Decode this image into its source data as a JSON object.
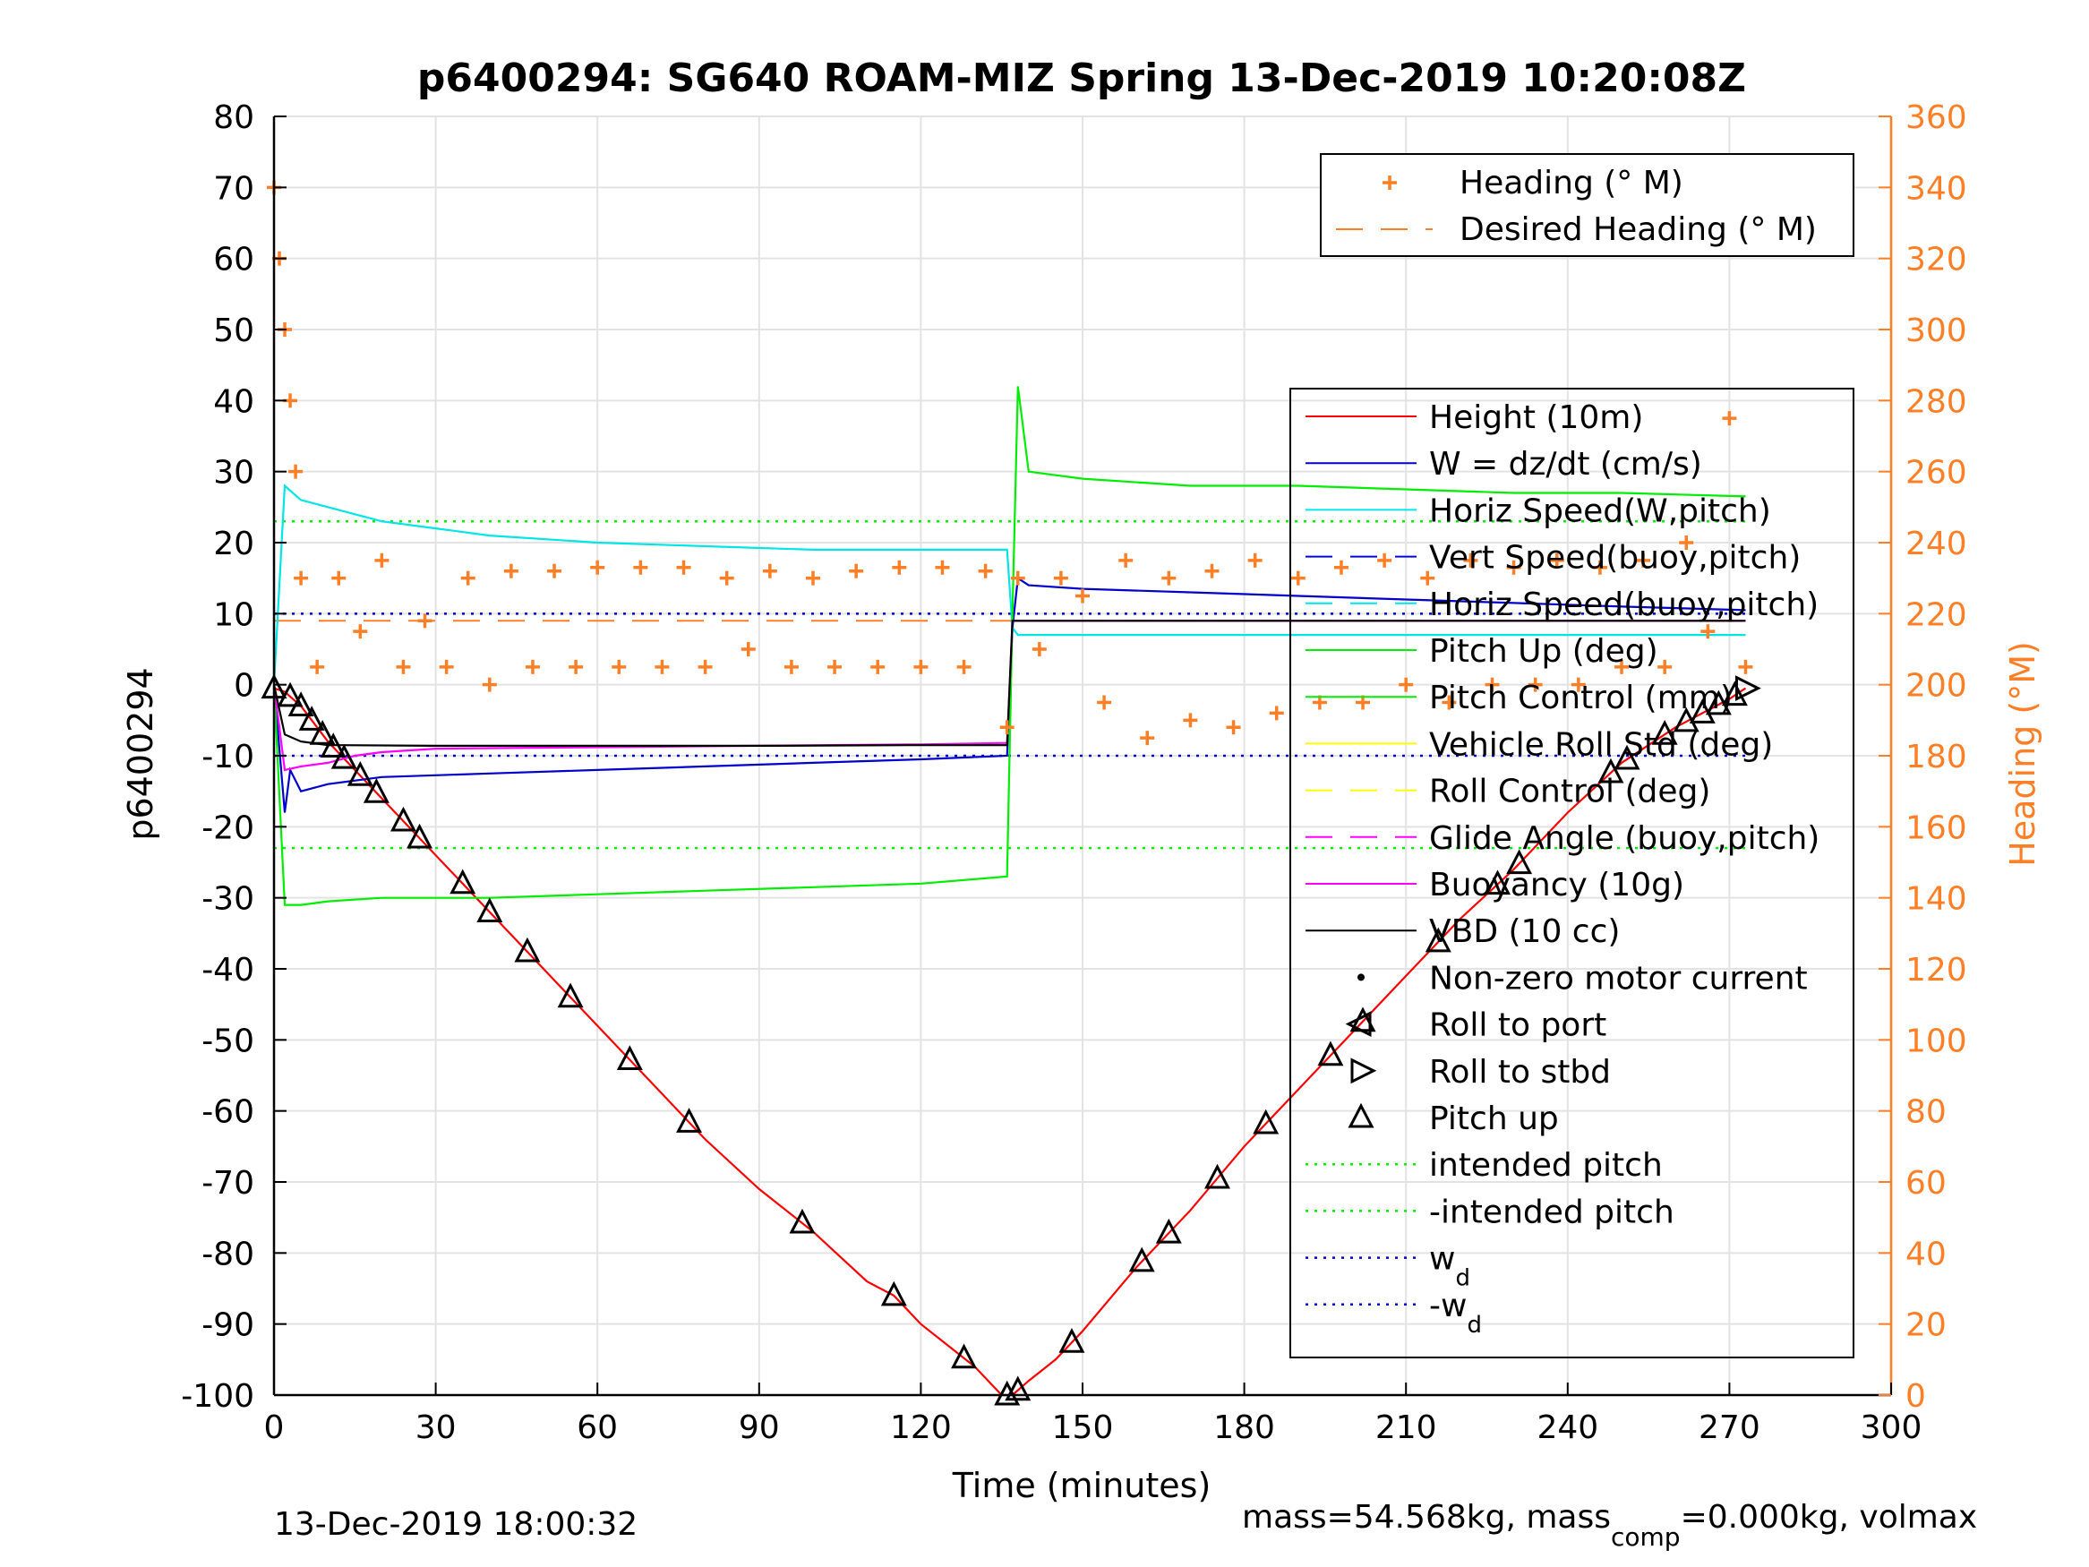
{
  "figure": {
    "title": "p6400294: SG640 ROAM-MIZ Spring 13-Dec-2019 10:20:08Z",
    "footer_left": "13-Dec-2019 18:00:32",
    "footer_right_prefix": "mass=54.568kg, mass",
    "footer_right_sub": "comp",
    "footer_right_suffix": "=0.000kg, volmax"
  },
  "chart_data": {
    "type": "line",
    "title": "p6400294: SG640 ROAM-MIZ Spring 13-Dec-2019 10:20:08Z",
    "xlabel": "Time (minutes)",
    "ylabel": "p6400294",
    "y2label": "Heading (°M)",
    "xlim": [
      0,
      300
    ],
    "ylim": [
      -100,
      80
    ],
    "y2lim": [
      0,
      360
    ],
    "xticks": [
      "0",
      "30",
      "60",
      "90",
      "120",
      "150",
      "180",
      "210",
      "240",
      "270",
      "300"
    ],
    "yticks": [
      "80",
      "70",
      "60",
      "50",
      "40",
      "30",
      "20",
      "10",
      "0",
      "-10",
      "-20",
      "-30",
      "-40",
      "-50",
      "-60",
      "-70",
      "-80",
      "-90",
      "-100"
    ],
    "y2ticks": [
      "360",
      "340",
      "320",
      "300",
      "280",
      "260",
      "240",
      "220",
      "200",
      "180",
      "160",
      "140",
      "120",
      "100",
      "80",
      "60",
      "40",
      "20",
      "0"
    ],
    "grid": true,
    "colors": {
      "height": "#ff0000",
      "w": "#0000cc",
      "horiz": "#00e5e5",
      "vert_buoy": "#0000ff",
      "pitch": "#00ee00",
      "roll": "#ffff00",
      "buoyancy": "#ff00ff",
      "vbd": "#000000",
      "heading": "#ff7f27",
      "marker": "#000000"
    },
    "legend_heading": {
      "placement": "top-right",
      "entries": [
        "Heading (° M)",
        "Desired Heading (° M)"
      ]
    },
    "legend_main": {
      "placement": "right",
      "entries": [
        "Height (10m)",
        "W = dz/dt (cm/s)",
        "Horiz Speed(W,pitch)",
        "Vert Speed(buoy,pitch)",
        "Horiz Speed(buoy,pitch)",
        "Pitch Up (deg)",
        "Pitch Control (mm)",
        "Vehicle Roll Std (deg)",
        "Roll Control (deg)",
        "Glide Angle (buoy,pitch)",
        "Buoyancy (10g)",
        "VBD (10 cc)",
        "Non-zero motor current",
        "Roll to port",
        "Roll to stbd",
        "Pitch up",
        "intended pitch",
        "-intended pitch",
        "w",
        "-w"
      ],
      "subscript": "d"
    },
    "constants": {
      "intended_pitch": 23,
      "neg_intended_pitch": -23,
      "w_d": 10,
      "neg_w_d": -10,
      "desired_heading": 218
    },
    "series": [
      {
        "name": "Height (10m)",
        "x": [
          0,
          2,
          5,
          10,
          15,
          20,
          30,
          40,
          50,
          60,
          70,
          80,
          90,
          100,
          110,
          115,
          120,
          125,
          130,
          135,
          137,
          140,
          145,
          150,
          160,
          170,
          180,
          190,
          200,
          210,
          220,
          230,
          240,
          250,
          260,
          270,
          273
        ],
        "y": [
          -0.5,
          -1,
          -3,
          -8,
          -12,
          -16,
          -24,
          -32,
          -40,
          -48,
          -56,
          -64,
          -71,
          -77,
          -84,
          -86,
          -90,
          -93,
          -96,
          -100,
          -100,
          -98,
          -95,
          -91,
          -82,
          -74,
          -65,
          -57,
          -49,
          -41,
          -33,
          -26,
          -18,
          -11,
          -6,
          -2,
          -0.5
        ]
      },
      {
        "name": "W = dz/dt (cm/s)",
        "x": [
          0,
          2,
          3,
          5,
          10,
          20,
          40,
          60,
          80,
          100,
          120,
          136,
          137,
          138,
          140,
          150,
          170,
          190,
          210,
          230,
          250,
          273
        ],
        "y": [
          0,
          -18,
          -12,
          -15,
          -14,
          -13,
          -12.5,
          -12,
          -11.5,
          -11,
          -10.5,
          -10,
          8,
          15,
          14,
          13.5,
          13,
          12.5,
          12,
          11.5,
          11,
          10.5
        ]
      },
      {
        "name": "Horiz Speed(W,pitch)",
        "x": [
          0,
          2,
          5,
          10,
          15,
          20,
          30,
          40,
          60,
          80,
          100,
          120,
          136,
          137,
          138,
          150,
          180,
          210,
          240,
          273
        ],
        "y": [
          0,
          28,
          26,
          25,
          24,
          23,
          22,
          21,
          20,
          19.5,
          19,
          19,
          19,
          8,
          7,
          7,
          7,
          7,
          7,
          7
        ]
      },
      {
        "name": "Pitch Up (deg)",
        "x": [
          0,
          2,
          5,
          10,
          20,
          40,
          60,
          80,
          100,
          120,
          136,
          137,
          138,
          140,
          150,
          170,
          190,
          210,
          230,
          250,
          273
        ],
        "y": [
          0,
          -31,
          -31,
          -30.5,
          -30,
          -30,
          -29.5,
          -29,
          -28.5,
          -28,
          -27,
          10,
          42,
          30,
          29,
          28,
          28,
          27.5,
          27,
          27,
          26.5
        ]
      },
      {
        "name": "Buoyancy (10g)",
        "x": [
          0,
          2,
          5,
          10,
          15,
          20,
          30,
          60,
          90,
          120,
          136,
          137,
          273
        ],
        "y": [
          0,
          -12,
          -11.5,
          -11,
          -10,
          -9.5,
          -9,
          -8.8,
          -8.6,
          -8.4,
          -8.2,
          9,
          9
        ]
      },
      {
        "name": "VBD (10 cc)",
        "x": [
          0,
          2,
          5,
          10,
          30,
          60,
          90,
          120,
          136,
          137,
          273
        ],
        "y": [
          0,
          -7,
          -8,
          -8.5,
          -8.6,
          -8.6,
          -8.6,
          -8.5,
          -8.5,
          9,
          9
        ]
      },
      {
        "name": "Heading (° M)",
        "axis": "right",
        "x": [
          0,
          1,
          2,
          3,
          4,
          5,
          8,
          12,
          16,
          20,
          24,
          28,
          32,
          36,
          40,
          44,
          48,
          52,
          56,
          60,
          64,
          68,
          72,
          76,
          80,
          84,
          88,
          92,
          96,
          100,
          104,
          108,
          112,
          116,
          120,
          124,
          128,
          132,
          136,
          138,
          142,
          146,
          150,
          154,
          158,
          162,
          166,
          170,
          174,
          178,
          182,
          186,
          190,
          194,
          198,
          202,
          206,
          210,
          214,
          218,
          222,
          226,
          230,
          234,
          238,
          242,
          246,
          250,
          254,
          258,
          262,
          266,
          270,
          273
        ],
        "y": [
          340,
          320,
          300,
          280,
          260,
          230,
          205,
          230,
          215,
          235,
          205,
          218,
          205,
          230,
          200,
          232,
          205,
          232,
          205,
          233,
          205,
          233,
          205,
          233,
          205,
          230,
          210,
          232,
          205,
          230,
          205,
          232,
          205,
          233,
          205,
          233,
          205,
          232,
          188,
          230,
          210,
          230,
          225,
          195,
          235,
          185,
          230,
          190,
          232,
          188,
          235,
          192,
          230,
          195,
          233,
          195,
          235,
          200,
          230,
          195,
          235,
          200,
          233,
          200,
          235,
          200,
          233,
          205,
          235,
          205,
          240,
          215,
          275,
          205
        ]
      }
    ],
    "markers": {
      "pitch_up_x": [
        0,
        3,
        5,
        7,
        9,
        11,
        13,
        16,
        19,
        24,
        27,
        35,
        40,
        47,
        55,
        66,
        77,
        98,
        115,
        128,
        136,
        138,
        148,
        161,
        166,
        175,
        184,
        196,
        202,
        216,
        227,
        231,
        248,
        251,
        258,
        262,
        265,
        268,
        271
      ],
      "roll_to_stbd_x": [
        273
      ]
    }
  }
}
